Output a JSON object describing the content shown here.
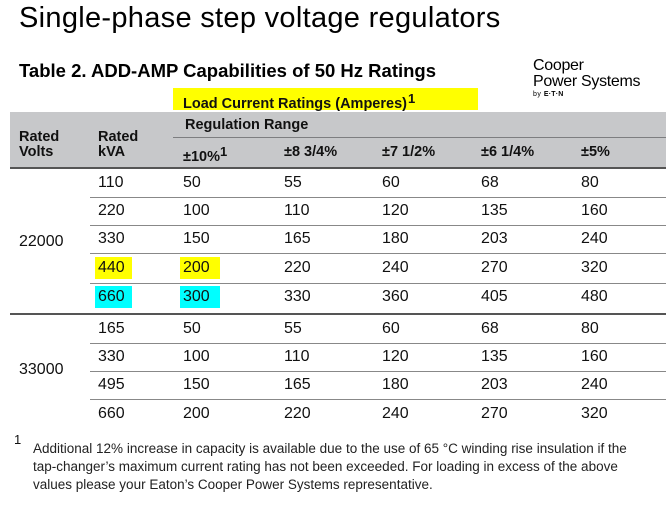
{
  "title": "Single-phase step voltage regulators",
  "subtitle": "Table 2.  ADD-AMP Capabilities of 50 Hz Ratings",
  "brand": {
    "line1": "Cooper",
    "line2": "Power Systems",
    "by": "by",
    "by_brand": "E·T·N"
  },
  "load_header": {
    "label": "Load Current Ratings (Amperes)",
    "note_mark": "1"
  },
  "headers": {
    "rated_volts": [
      "Rated",
      "Volts"
    ],
    "rated_kva": [
      "Rated",
      "kVA"
    ],
    "regulation_range": "Regulation Range",
    "ranges": [
      {
        "label": "±10%",
        "mark": "1"
      },
      {
        "label": "±8 3/4%",
        "mark": ""
      },
      {
        "label": "±7 1/2%",
        "mark": ""
      },
      {
        "label": "±6 1/4%",
        "mark": ""
      },
      {
        "label": "±5%",
        "mark": ""
      }
    ]
  },
  "groups": [
    {
      "volts": "22000",
      "rows": [
        {
          "kva": "110",
          "values": [
            "50",
            "55",
            "60",
            "68",
            "80"
          ],
          "highlight": ""
        },
        {
          "kva": "220",
          "values": [
            "100",
            "110",
            "120",
            "135",
            "160"
          ],
          "highlight": ""
        },
        {
          "kva": "330",
          "values": [
            "150",
            "165",
            "180",
            "203",
            "240"
          ],
          "highlight": ""
        },
        {
          "kva": "440",
          "values": [
            "200",
            "220",
            "240",
            "270",
            "320"
          ],
          "highlight": "yellow"
        },
        {
          "kva": "660",
          "values": [
            "300",
            "330",
            "360",
            "405",
            "480"
          ],
          "highlight": "cyan"
        }
      ]
    },
    {
      "volts": "33000",
      "rows": [
        {
          "kva": "165",
          "values": [
            "50",
            "55",
            "60",
            "68",
            "80"
          ],
          "highlight": ""
        },
        {
          "kva": "330",
          "values": [
            "100",
            "110",
            "120",
            "135",
            "160"
          ],
          "highlight": ""
        },
        {
          "kva": "495",
          "values": [
            "150",
            "165",
            "180",
            "203",
            "240"
          ],
          "highlight": ""
        },
        {
          "kva": "660",
          "values": [
            "200",
            "220",
            "240",
            "270",
            "320"
          ],
          "highlight": ""
        }
      ]
    }
  ],
  "footnote": {
    "mark": "1",
    "text": "Additional 12% increase in capacity is available due to the use of 65 °C winding rise insulation if the tap-changer’s maximum current rating has not been exceeded. For loading in excess of the above values please your Eaton’s Cooper Power Systems representative."
  },
  "colors": {
    "header_band": "#c7c8ca",
    "highlight_yellow": "#ffff00",
    "highlight_cyan": "#00ffff"
  }
}
